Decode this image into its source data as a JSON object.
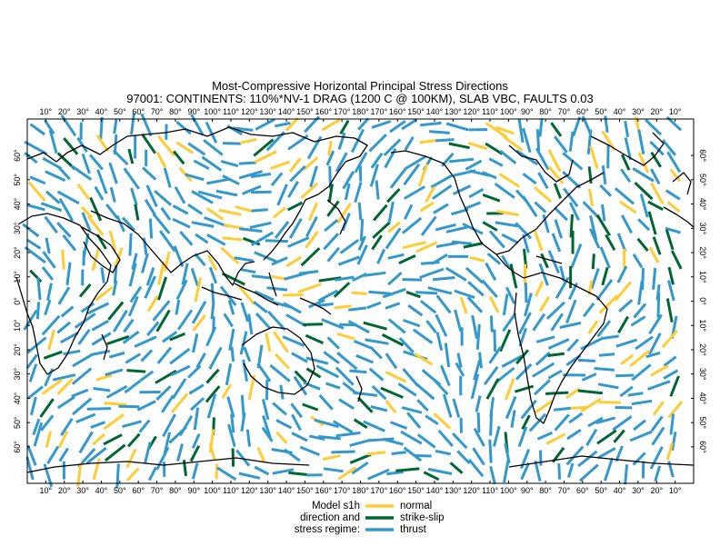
{
  "title": {
    "line1": "Most-Compressive Horizontal Principal Stress Directions",
    "line2": "97001: CONTINENTS: 110%*NV-1 DRAG (1200 C @ 100KM), SLAB VBC, FAULTS 0.03"
  },
  "axes": {
    "top_ticks": [
      "10°",
      "20°",
      "30°",
      "40°",
      "50°",
      "60°",
      "70°",
      "80°",
      "90°",
      "100°",
      "110°",
      "120°",
      "130°",
      "140°",
      "150°",
      "160°",
      "170°",
      "180°",
      "170°",
      "160°",
      "150°",
      "140°",
      "130°",
      "120°",
      "110°",
      "100°",
      "90°",
      "80°",
      "70°",
      "60°",
      "50°",
      "40°",
      "30°",
      "20°",
      "10°"
    ],
    "left_ticks": [
      "60°",
      "50°",
      "40°",
      "30°",
      "20°",
      "10°",
      "0°",
      "10°",
      "20°",
      "30°",
      "40°",
      "50°",
      "60°"
    ],
    "lon_range": [
      0,
      360
    ],
    "lat_range": [
      -75,
      75
    ]
  },
  "legend": {
    "heading_lines": [
      "Model s1h",
      "direction and",
      "stress regime:"
    ],
    "items": [
      {
        "label": "normal",
        "color": "#ffcc33"
      },
      {
        "label": "strike-slip",
        "color": "#006633"
      },
      {
        "label": "thrust",
        "color": "#3399cc"
      }
    ]
  },
  "colors": {
    "normal": "#ffcc33",
    "strike_slip": "#006633",
    "thrust": "#3399cc",
    "coastline": "#000000"
  }
}
